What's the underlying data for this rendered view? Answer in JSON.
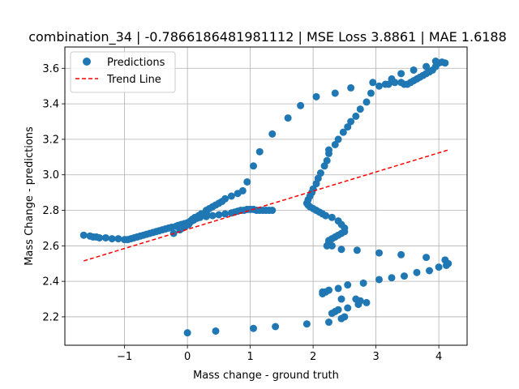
{
  "chart_data": {
    "type": "scatter",
    "title": "combination_34 | -0.7866186481981112 | MSE Loss 3.8861 | MAE 1.6188",
    "xlabel": "Mass change - ground truth",
    "ylabel": "Mass Change - predictions",
    "xlim": [
      -1.95,
      4.45
    ],
    "ylim": [
      2.04,
      3.72
    ],
    "xticks": [
      -1,
      0,
      1,
      2,
      3,
      4
    ],
    "yticks": [
      2.2,
      2.4,
      2.6,
      2.8,
      3.0,
      3.2,
      3.4,
      3.6
    ],
    "xtick_labels": [
      "−1",
      "0",
      "1",
      "2",
      "3",
      "4"
    ],
    "ytick_labels": [
      "2.2",
      "2.4",
      "2.6",
      "2.8",
      "3.0",
      "3.2",
      "3.4",
      "3.6"
    ],
    "grid": true,
    "legend_position": "top-left",
    "series": [
      {
        "name": "Predictions",
        "kind": "scatter",
        "color": "#1f77b4",
        "points": [
          [
            -1.65,
            2.66
          ],
          [
            -1.55,
            2.655
          ],
          [
            -1.5,
            2.65
          ],
          [
            -1.45,
            2.65
          ],
          [
            -1.4,
            2.645
          ],
          [
            -1.3,
            2.645
          ],
          [
            -1.2,
            2.64
          ],
          [
            -1.1,
            2.64
          ],
          [
            -1.0,
            2.635
          ],
          [
            -0.95,
            2.635
          ],
          [
            -0.9,
            2.64
          ],
          [
            -0.85,
            2.645
          ],
          [
            -0.8,
            2.65
          ],
          [
            -0.75,
            2.655
          ],
          [
            -0.7,
            2.66
          ],
          [
            -0.65,
            2.665
          ],
          [
            -0.6,
            2.67
          ],
          [
            -0.55,
            2.675
          ],
          [
            -0.5,
            2.68
          ],
          [
            -0.45,
            2.685
          ],
          [
            -0.4,
            2.69
          ],
          [
            -0.35,
            2.695
          ],
          [
            -0.3,
            2.7
          ],
          [
            -0.25,
            2.705
          ],
          [
            -0.22,
            2.67
          ],
          [
            -0.18,
            2.71
          ],
          [
            -0.15,
            2.715
          ],
          [
            -0.1,
            2.72
          ],
          [
            -0.05,
            2.725
          ],
          [
            0.0,
            2.73
          ],
          [
            -0.12,
            2.69
          ],
          [
            -0.08,
            2.7
          ],
          [
            -0.03,
            2.71
          ],
          [
            0.02,
            2.72
          ],
          [
            0.05,
            2.735
          ],
          [
            0.1,
            2.745
          ],
          [
            0.15,
            2.755
          ],
          [
            0.2,
            2.765
          ],
          [
            0.25,
            2.775
          ],
          [
            0.3,
            2.785
          ],
          [
            0.05,
            2.74
          ],
          [
            0.08,
            2.75
          ],
          [
            0.12,
            2.76
          ],
          [
            0.18,
            2.77
          ],
          [
            0.22,
            2.78
          ],
          [
            0.3,
            2.8
          ],
          [
            0.35,
            2.81
          ],
          [
            0.4,
            2.82
          ],
          [
            0.45,
            2.83
          ],
          [
            0.5,
            2.84
          ],
          [
            0.55,
            2.85
          ],
          [
            0.6,
            2.865
          ],
          [
            0.7,
            2.88
          ],
          [
            0.8,
            2.895
          ],
          [
            0.88,
            2.91
          ],
          [
            0.95,
            2.96
          ],
          [
            1.05,
            3.05
          ],
          [
            1.15,
            3.13
          ],
          [
            1.35,
            3.23
          ],
          [
            1.6,
            3.32
          ],
          [
            1.8,
            3.39
          ],
          [
            2.05,
            3.44
          ],
          [
            2.35,
            3.46
          ],
          [
            2.6,
            3.49
          ],
          [
            0.1,
            2.75
          ],
          [
            0.2,
            2.76
          ],
          [
            0.3,
            2.765
          ],
          [
            0.4,
            2.77
          ],
          [
            0.5,
            2.775
          ],
          [
            0.6,
            2.78
          ],
          [
            0.7,
            2.785
          ],
          [
            0.75,
            2.79
          ],
          [
            0.8,
            2.795
          ],
          [
            0.85,
            2.8
          ],
          [
            0.9,
            2.8
          ],
          [
            0.95,
            2.805
          ],
          [
            1.0,
            2.805
          ],
          [
            1.05,
            2.805
          ],
          [
            1.1,
            2.8
          ],
          [
            1.15,
            2.8
          ],
          [
            1.2,
            2.8
          ],
          [
            1.25,
            2.8
          ],
          [
            1.3,
            2.8
          ],
          [
            1.35,
            2.8
          ],
          [
            1.9,
            2.84
          ],
          [
            1.92,
            2.83
          ],
          [
            1.95,
            2.82
          ],
          [
            2.0,
            2.81
          ],
          [
            2.05,
            2.8
          ],
          [
            2.1,
            2.79
          ],
          [
            2.15,
            2.78
          ],
          [
            2.2,
            2.77
          ],
          [
            2.3,
            2.76
          ],
          [
            2.4,
            2.74
          ],
          [
            2.45,
            2.72
          ],
          [
            2.5,
            2.7
          ],
          [
            2.5,
            2.68
          ],
          [
            2.45,
            2.67
          ],
          [
            2.4,
            2.66
          ],
          [
            2.35,
            2.65
          ],
          [
            2.3,
            2.64
          ],
          [
            2.25,
            2.62
          ],
          [
            2.22,
            2.6
          ],
          [
            2.25,
            2.63
          ],
          [
            1.92,
            2.86
          ],
          [
            1.95,
            2.88
          ],
          [
            1.98,
            2.9
          ],
          [
            2.0,
            2.92
          ],
          [
            2.05,
            2.95
          ],
          [
            2.08,
            2.98
          ],
          [
            2.12,
            3.01
          ],
          [
            2.18,
            3.05
          ],
          [
            2.22,
            3.08
          ],
          [
            2.25,
            3.12
          ],
          [
            2.25,
            3.14
          ],
          [
            2.35,
            3.17
          ],
          [
            2.4,
            3.2
          ],
          [
            2.48,
            3.24
          ],
          [
            2.55,
            3.27
          ],
          [
            2.6,
            3.3
          ],
          [
            2.68,
            3.33
          ],
          [
            2.75,
            3.37
          ],
          [
            2.85,
            3.41
          ],
          [
            2.92,
            3.46
          ],
          [
            2.95,
            3.52
          ],
          [
            3.05,
            3.5
          ],
          [
            3.15,
            3.51
          ],
          [
            3.2,
            3.51
          ],
          [
            3.3,
            3.52
          ],
          [
            3.4,
            3.52
          ],
          [
            3.45,
            3.51
          ],
          [
            3.5,
            3.51
          ],
          [
            3.55,
            3.52
          ],
          [
            3.6,
            3.53
          ],
          [
            3.65,
            3.54
          ],
          [
            3.7,
            3.55
          ],
          [
            3.75,
            3.56
          ],
          [
            3.8,
            3.57
          ],
          [
            3.85,
            3.58
          ],
          [
            3.9,
            3.59
          ],
          [
            3.95,
            3.61
          ],
          [
            4.0,
            3.63
          ],
          [
            4.05,
            3.635
          ],
          [
            4.1,
            3.63
          ],
          [
            3.25,
            3.54
          ],
          [
            3.4,
            3.57
          ],
          [
            3.6,
            3.59
          ],
          [
            3.8,
            3.61
          ],
          [
            3.95,
            3.64
          ],
          [
            2.3,
            2.6
          ],
          [
            2.45,
            2.58
          ],
          [
            2.7,
            2.575
          ],
          [
            3.05,
            2.56
          ],
          [
            3.4,
            2.55
          ],
          [
            3.8,
            2.535
          ],
          [
            4.0,
            2.48
          ],
          [
            4.1,
            2.52
          ],
          [
            4.15,
            2.5
          ],
          [
            4.12,
            2.49
          ],
          [
            2.15,
            2.34
          ],
          [
            2.2,
            2.34
          ],
          [
            2.25,
            2.35
          ],
          [
            2.4,
            2.36
          ],
          [
            2.55,
            2.38
          ],
          [
            2.8,
            2.39
          ],
          [
            3.05,
            2.41
          ],
          [
            3.25,
            2.42
          ],
          [
            3.45,
            2.43
          ],
          [
            3.65,
            2.45
          ],
          [
            3.85,
            2.46
          ],
          [
            2.15,
            2.33
          ],
          [
            2.35,
            2.23
          ],
          [
            2.4,
            2.24
          ],
          [
            2.45,
            2.3
          ],
          [
            2.55,
            2.25
          ],
          [
            2.68,
            2.3
          ],
          [
            2.75,
            2.29
          ],
          [
            2.85,
            2.28
          ],
          [
            2.72,
            2.27
          ],
          [
            2.3,
            2.22
          ],
          [
            2.45,
            2.19
          ],
          [
            2.5,
            2.2
          ],
          [
            2.25,
            2.17
          ],
          [
            0.0,
            2.11
          ],
          [
            0.45,
            2.12
          ],
          [
            1.05,
            2.135
          ],
          [
            1.4,
            2.145
          ],
          [
            1.9,
            2.16
          ]
        ]
      },
      {
        "name": "Trend Line",
        "kind": "line",
        "style": "dashed",
        "color": "#ff0000",
        "x": [
          -1.65,
          4.15
        ],
        "y": [
          2.515,
          3.14
        ]
      }
    ]
  }
}
